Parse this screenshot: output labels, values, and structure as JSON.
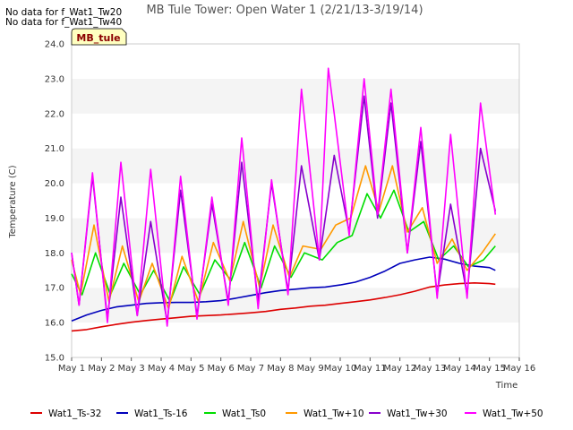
{
  "chart_data": {
    "type": "line",
    "title": "MB Tule Tower: Open Water 1 (2/21/13-3/19/14)",
    "xlabel": "Time",
    "ylabel": "Temperature (C)",
    "ylim": [
      15.0,
      24.0
    ],
    "xlim": [
      1,
      16
    ],
    "yticks": [
      "15.0",
      "16.0",
      "17.0",
      "18.0",
      "19.0",
      "20.0",
      "21.0",
      "22.0",
      "23.0",
      "24.0"
    ],
    "xticks": [
      "May 1",
      "May 2",
      "May 3",
      "May 4",
      "May 5",
      "May 6",
      "May 7",
      "May 8",
      "May 9",
      "May 10",
      "May 11",
      "May 12",
      "May 13",
      "May 14",
      "May 15",
      "May 16"
    ],
    "notes": [
      "No data for f_Wat1_Tw20",
      "No data for f_Wat1_Tw40"
    ],
    "tag": "MB_tule",
    "grid": "horizontal bands",
    "legend_position": "bottom",
    "series": [
      {
        "name": "Wat1_Ts-32",
        "color": "#dd0000",
        "x": [
          1,
          1.5,
          2,
          2.5,
          3,
          3.5,
          4,
          4.5,
          5,
          5.5,
          6,
          6.5,
          7,
          7.5,
          8,
          8.5,
          9,
          9.5,
          10,
          10.5,
          11,
          11.5,
          12,
          12.5,
          13,
          13.5,
          14,
          14.5,
          15,
          15.2
        ],
        "y": [
          15.76,
          15.8,
          15.88,
          15.95,
          16.01,
          16.06,
          16.1,
          16.14,
          16.18,
          16.2,
          16.22,
          16.25,
          16.28,
          16.32,
          16.38,
          16.42,
          16.47,
          16.5,
          16.55,
          16.6,
          16.65,
          16.72,
          16.8,
          16.9,
          17.02,
          17.08,
          17.12,
          17.14,
          17.12,
          17.1
        ]
      },
      {
        "name": "Wat1_Ts-16",
        "color": "#0000bb",
        "x": [
          1,
          1.5,
          2,
          2.5,
          3,
          3.5,
          4,
          4.5,
          5,
          5.5,
          6,
          6.5,
          7,
          7.5,
          8,
          8.5,
          9,
          9.5,
          10,
          10.5,
          11,
          11.5,
          12,
          12.5,
          13,
          13.5,
          14,
          14.5,
          15,
          15.2
        ],
        "y": [
          16.05,
          16.22,
          16.35,
          16.45,
          16.5,
          16.55,
          16.57,
          16.58,
          16.58,
          16.6,
          16.63,
          16.7,
          16.78,
          16.86,
          16.92,
          16.96,
          17.0,
          17.02,
          17.08,
          17.16,
          17.3,
          17.48,
          17.7,
          17.8,
          17.88,
          17.82,
          17.7,
          17.62,
          17.58,
          17.5
        ]
      },
      {
        "name": "Wat1_Ts0",
        "color": "#00dd00",
        "x": [
          1,
          1.35,
          1.8,
          2.3,
          2.75,
          3.3,
          3.75,
          4.3,
          4.75,
          5.3,
          5.8,
          6.35,
          6.8,
          7.35,
          7.8,
          8.35,
          8.8,
          9.4,
          9.9,
          10.4,
          10.9,
          11.35,
          11.8,
          12.3,
          12.8,
          13.3,
          13.8,
          14.3,
          14.8,
          15.2
        ],
        "y": [
          17.4,
          16.8,
          18.0,
          16.8,
          17.7,
          16.8,
          17.5,
          16.6,
          17.6,
          16.8,
          17.8,
          17.2,
          18.3,
          17.0,
          18.2,
          17.3,
          18.0,
          17.8,
          18.3,
          18.5,
          19.7,
          19.0,
          19.8,
          18.6,
          18.9,
          17.8,
          18.2,
          17.6,
          17.8,
          18.2
        ]
      },
      {
        "name": "Wat1_Tw+10",
        "color": "#ff9900",
        "x": [
          1,
          1.3,
          1.75,
          2.25,
          2.7,
          3.25,
          3.7,
          4.25,
          4.7,
          5.25,
          5.75,
          6.3,
          6.75,
          7.3,
          7.75,
          8.3,
          8.75,
          9.35,
          9.85,
          10.35,
          10.85,
          11.3,
          11.75,
          12.25,
          12.75,
          13.25,
          13.75,
          14.25,
          14.75,
          15.2
        ],
        "y": [
          17.8,
          16.8,
          18.8,
          16.6,
          18.2,
          16.6,
          17.7,
          16.4,
          17.9,
          16.6,
          18.3,
          17.2,
          18.9,
          17.0,
          18.8,
          17.3,
          18.2,
          18.1,
          18.8,
          19.0,
          20.5,
          19.2,
          20.5,
          18.6,
          19.3,
          17.7,
          18.4,
          17.5,
          18.0,
          18.55
        ]
      },
      {
        "name": "Wat1_Tw+30",
        "color": "#8800cc",
        "x": [
          1,
          1.25,
          1.7,
          2.2,
          2.65,
          3.2,
          3.65,
          4.2,
          4.65,
          5.2,
          5.7,
          6.25,
          6.7,
          7.25,
          7.7,
          8.25,
          8.7,
          9.3,
          9.8,
          10.3,
          10.8,
          11.25,
          11.7,
          12.25,
          12.7,
          13.25,
          13.7,
          14.25,
          14.7,
          15.2
        ],
        "y": [
          18.0,
          16.5,
          20.2,
          16.1,
          19.6,
          16.2,
          18.9,
          16.0,
          19.8,
          16.2,
          19.4,
          16.6,
          20.6,
          16.6,
          20.0,
          16.9,
          20.5,
          17.8,
          20.8,
          18.6,
          22.5,
          19.0,
          22.3,
          18.0,
          21.2,
          16.8,
          19.4,
          16.8,
          21.0,
          19.2
        ]
      },
      {
        "name": "Wat1_Tw+50",
        "color": "#ff00ff",
        "x": [
          1,
          1.25,
          1.7,
          2.2,
          2.65,
          3.2,
          3.65,
          4.2,
          4.65,
          5.2,
          5.7,
          6.25,
          6.7,
          7.25,
          7.7,
          8.25,
          8.7,
          9.3,
          9.6,
          9.8,
          10.3,
          10.8,
          11.25,
          11.7,
          12.25,
          12.7,
          13.25,
          13.7,
          14.25,
          14.7,
          15.2
        ],
        "y": [
          18.0,
          16.5,
          20.3,
          16.0,
          20.6,
          16.2,
          20.4,
          15.9,
          20.2,
          16.1,
          19.6,
          16.5,
          21.3,
          16.4,
          20.1,
          16.8,
          22.7,
          17.8,
          23.3,
          22.0,
          18.5,
          23.0,
          19.1,
          22.7,
          18.0,
          21.6,
          16.7,
          21.4,
          16.7,
          22.3,
          19.1
        ]
      }
    ]
  }
}
